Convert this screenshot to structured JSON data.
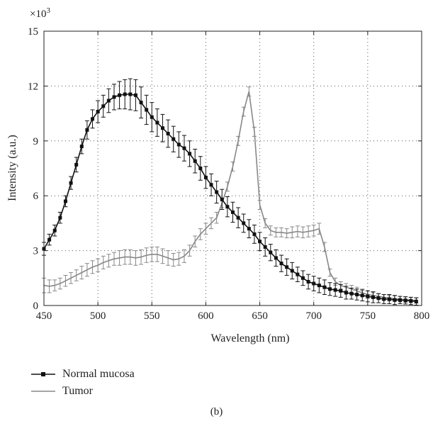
{
  "chart_data": {
    "type": "line",
    "title": "",
    "xlabel": "Wavelength (nm)",
    "ylabel": "Intensity (a.u.)",
    "y_multiplier": "×10",
    "y_multiplier_exp": "3",
    "xlim": [
      450,
      800
    ],
    "ylim": [
      0,
      15
    ],
    "xticks": [
      450,
      500,
      550,
      600,
      650,
      700,
      750,
      800
    ],
    "yticks": [
      0,
      3,
      6,
      9,
      12,
      15
    ],
    "grid": true,
    "legend_position": "bottom-left",
    "series": [
      {
        "name": "Normal mucosa",
        "color": "#111111",
        "marker": "square",
        "x": [
          450,
          455,
          460,
          465,
          470,
          475,
          480,
          485,
          490,
          495,
          500,
          505,
          510,
          515,
          520,
          525,
          530,
          535,
          540,
          545,
          550,
          555,
          560,
          565,
          570,
          575,
          580,
          585,
          590,
          595,
          600,
          605,
          610,
          615,
          620,
          625,
          630,
          635,
          640,
          645,
          650,
          655,
          660,
          665,
          670,
          675,
          680,
          685,
          690,
          695,
          700,
          705,
          710,
          715,
          720,
          725,
          730,
          735,
          740,
          745,
          750,
          755,
          760,
          765,
          770,
          775,
          780,
          785,
          790,
          795
        ],
        "y": [
          3.1,
          3.6,
          4.1,
          4.8,
          5.7,
          6.7,
          7.7,
          8.7,
          9.6,
          10.2,
          10.6,
          10.9,
          11.2,
          11.4,
          11.5,
          11.55,
          11.55,
          11.5,
          11.1,
          10.7,
          10.3,
          10.0,
          9.7,
          9.4,
          9.1,
          8.8,
          8.6,
          8.3,
          7.9,
          7.5,
          7.0,
          6.6,
          6.2,
          5.8,
          5.4,
          5.1,
          4.8,
          4.5,
          4.2,
          3.9,
          3.5,
          3.2,
          2.9,
          2.6,
          2.3,
          2.1,
          1.9,
          1.7,
          1.5,
          1.3,
          1.2,
          1.1,
          1.0,
          0.9,
          0.85,
          0.8,
          0.7,
          0.65,
          0.6,
          0.55,
          0.5,
          0.45,
          0.4,
          0.35,
          0.35,
          0.3,
          0.3,
          0.28,
          0.25,
          0.22
        ],
        "error": [
          0.35,
          0.3,
          0.3,
          0.3,
          0.3,
          0.35,
          0.4,
          0.4,
          0.5,
          0.5,
          0.6,
          0.6,
          0.65,
          0.7,
          0.75,
          0.8,
          0.85,
          0.85,
          0.85,
          0.8,
          0.8,
          0.75,
          0.75,
          0.75,
          0.7,
          0.7,
          0.7,
          0.7,
          0.65,
          0.65,
          0.6,
          0.6,
          0.6,
          0.55,
          0.55,
          0.55,
          0.55,
          0.5,
          0.5,
          0.5,
          0.5,
          0.5,
          0.45,
          0.45,
          0.45,
          0.45,
          0.45,
          0.4,
          0.4,
          0.4,
          0.4,
          0.4,
          0.4,
          0.35,
          0.35,
          0.35,
          0.35,
          0.3,
          0.3,
          0.3,
          0.3,
          0.3,
          0.25,
          0.25,
          0.25,
          0.25,
          0.2,
          0.2,
          0.2,
          0.2
        ]
      },
      {
        "name": "Tumor",
        "color": "#888888",
        "marker": "none",
        "x": [
          450,
          455,
          460,
          465,
          470,
          475,
          480,
          485,
          490,
          495,
          500,
          505,
          510,
          515,
          520,
          525,
          530,
          535,
          540,
          545,
          550,
          555,
          560,
          565,
          570,
          575,
          580,
          585,
          590,
          595,
          600,
          605,
          610,
          615,
          620,
          625,
          630,
          635,
          640,
          645,
          650,
          655,
          660,
          665,
          670,
          675,
          680,
          685,
          690,
          695,
          700,
          705,
          710,
          715,
          720,
          725,
          730,
          735,
          740,
          745,
          750,
          755,
          760,
          765,
          770,
          775,
          780,
          785,
          790,
          795
        ],
        "y": [
          1.1,
          1.05,
          1.1,
          1.2,
          1.35,
          1.5,
          1.65,
          1.8,
          1.95,
          2.1,
          2.2,
          2.35,
          2.45,
          2.55,
          2.6,
          2.65,
          2.65,
          2.6,
          2.65,
          2.75,
          2.8,
          2.8,
          2.7,
          2.6,
          2.5,
          2.55,
          2.7,
          3.0,
          3.5,
          3.9,
          4.2,
          4.5,
          4.8,
          5.6,
          6.5,
          7.6,
          9.0,
          10.6,
          11.7,
          9.5,
          5.5,
          4.5,
          4.1,
          4.0,
          4.0,
          3.95,
          4.0,
          4.05,
          4.0,
          4.05,
          4.1,
          4.2,
          3.2,
          1.8,
          1.3,
          1.1,
          1.0,
          0.9,
          0.8,
          0.7,
          0.6,
          0.55,
          0.5,
          0.45,
          0.4,
          0.38,
          0.35,
          0.32,
          0.3,
          0.28
        ],
        "error": [
          0.4,
          0.35,
          0.3,
          0.3,
          0.3,
          0.3,
          0.3,
          0.35,
          0.35,
          0.35,
          0.35,
          0.35,
          0.35,
          0.35,
          0.4,
          0.4,
          0.4,
          0.4,
          0.4,
          0.4,
          0.4,
          0.4,
          0.4,
          0.4,
          0.35,
          0.35,
          0.35,
          0.3,
          0.3,
          0.3,
          0.3,
          0.3,
          0.3,
          0.25,
          0.25,
          0.25,
          0.25,
          0.25,
          0.25,
          0.25,
          0.25,
          0.25,
          0.25,
          0.25,
          0.25,
          0.25,
          0.3,
          0.3,
          0.3,
          0.3,
          0.3,
          0.3,
          0.25,
          0.2,
          0.2,
          0.2,
          0.2,
          0.2,
          0.2,
          0.2,
          0.2,
          0.15,
          0.15,
          0.15,
          0.15,
          0.15,
          0.15,
          0.15,
          0.15,
          0.15
        ]
      }
    ]
  },
  "caption": "(b)"
}
